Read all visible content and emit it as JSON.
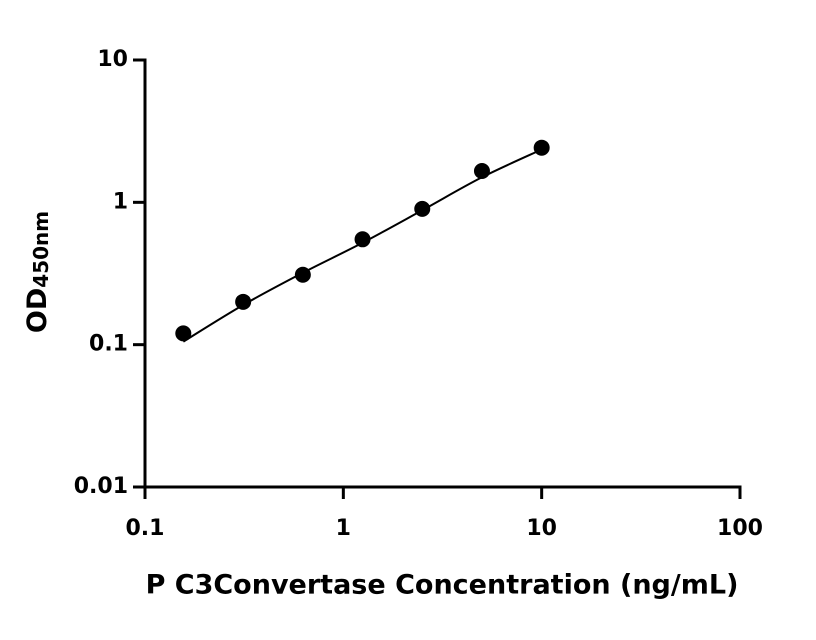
{
  "chart_data": {
    "type": "scatter",
    "x_label": "P C3Convertase Concentration (ng/mL)",
    "y_label": "OD",
    "y_label_sub": "450nm",
    "x": [
      0.156,
      0.3125,
      0.625,
      1.25,
      2.5,
      5,
      10
    ],
    "values": [
      0.12,
      0.2,
      0.31,
      0.55,
      0.9,
      1.66,
      2.42
    ],
    "color": "#000000",
    "fit": {
      "x": [
        0.156,
        0.3125,
        0.625,
        1.25,
        2.5,
        5,
        10
      ],
      "values": [
        0.105,
        0.19,
        0.32,
        0.52,
        0.88,
        1.5,
        2.35
      ],
      "color": "#000000"
    },
    "xscale": "log",
    "yscale": "log",
    "xlim": [
      0.1,
      100
    ],
    "xticks": [
      0.1,
      1,
      10,
      100
    ],
    "ylim": [
      0.01,
      10
    ],
    "yticks": [
      0.01,
      0.1,
      1,
      10
    ],
    "grid": false
  }
}
